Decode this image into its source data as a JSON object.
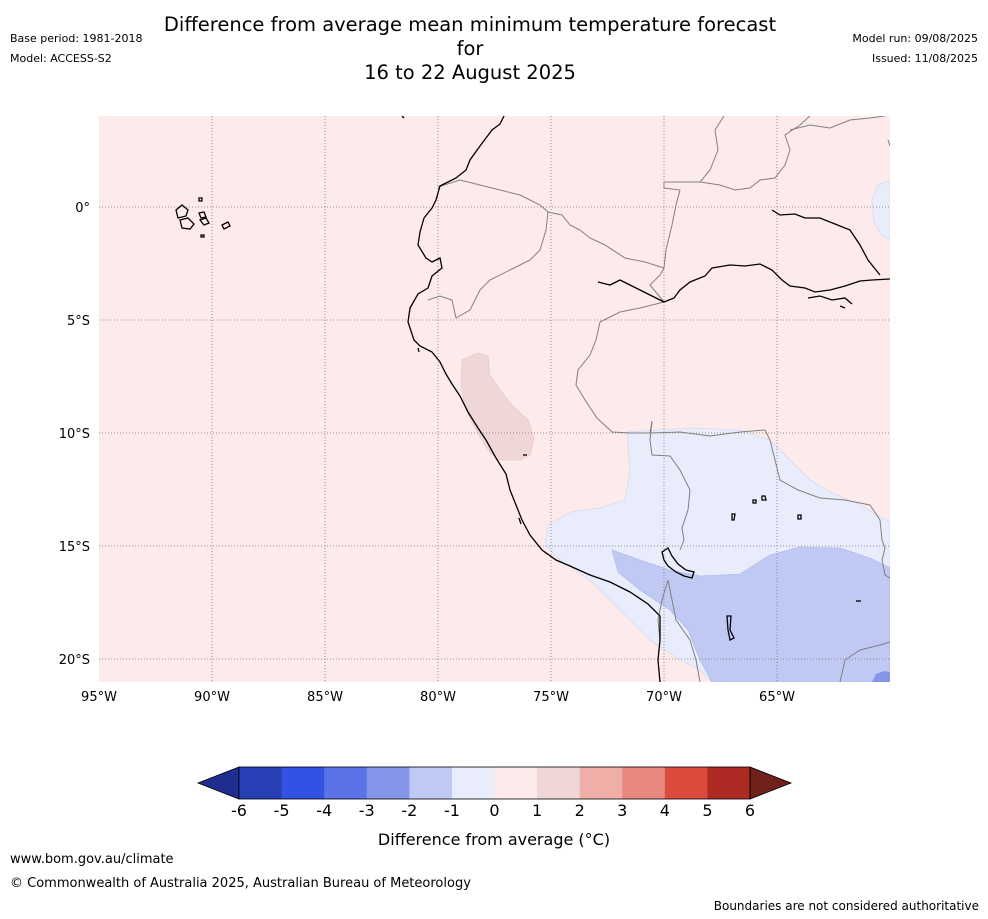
{
  "header": {
    "title_line1": "Difference from average mean minimum temperature forecast for",
    "title_line2": "16 to 22 August 2025",
    "base_period": "Base period: 1981-2018",
    "model": "Model: ACCESS-S2",
    "model_run": "Model run: 09/08/2025",
    "issued": "Issued: 11/08/2025"
  },
  "map": {
    "lat_labels": [
      "0°",
      "5°S",
      "10°S",
      "15°S",
      "20°S"
    ],
    "lon_labels": [
      "95°W",
      "90°W",
      "85°W",
      "80°W",
      "75°W",
      "70°W",
      "65°W"
    ],
    "background_color": "#fcebea"
  },
  "colorbar": {
    "ticks": [
      "-6",
      "-5",
      "-4",
      "-3",
      "-2",
      "-1",
      "0",
      "1",
      "2",
      "3",
      "4",
      "5",
      "6"
    ],
    "colors": [
      "#1e2d8f",
      "#2740b5",
      "#3352e3",
      "#5b73e6",
      "#8595ea",
      "#c0c8f4",
      "#e9ecfb",
      "#fcebea",
      "#efd7d7",
      "#efaea8",
      "#e8877e",
      "#dd4b3f",
      "#ae2b24",
      "#72201c"
    ],
    "label": "Difference from average (°C)"
  },
  "footer": {
    "url": "www.bom.gov.au/climate",
    "copyright": "© Commonwealth of Australia 2025, Australian Bureau of Meteorology",
    "disclaimer": "Boundaries are not considered authoritative"
  }
}
